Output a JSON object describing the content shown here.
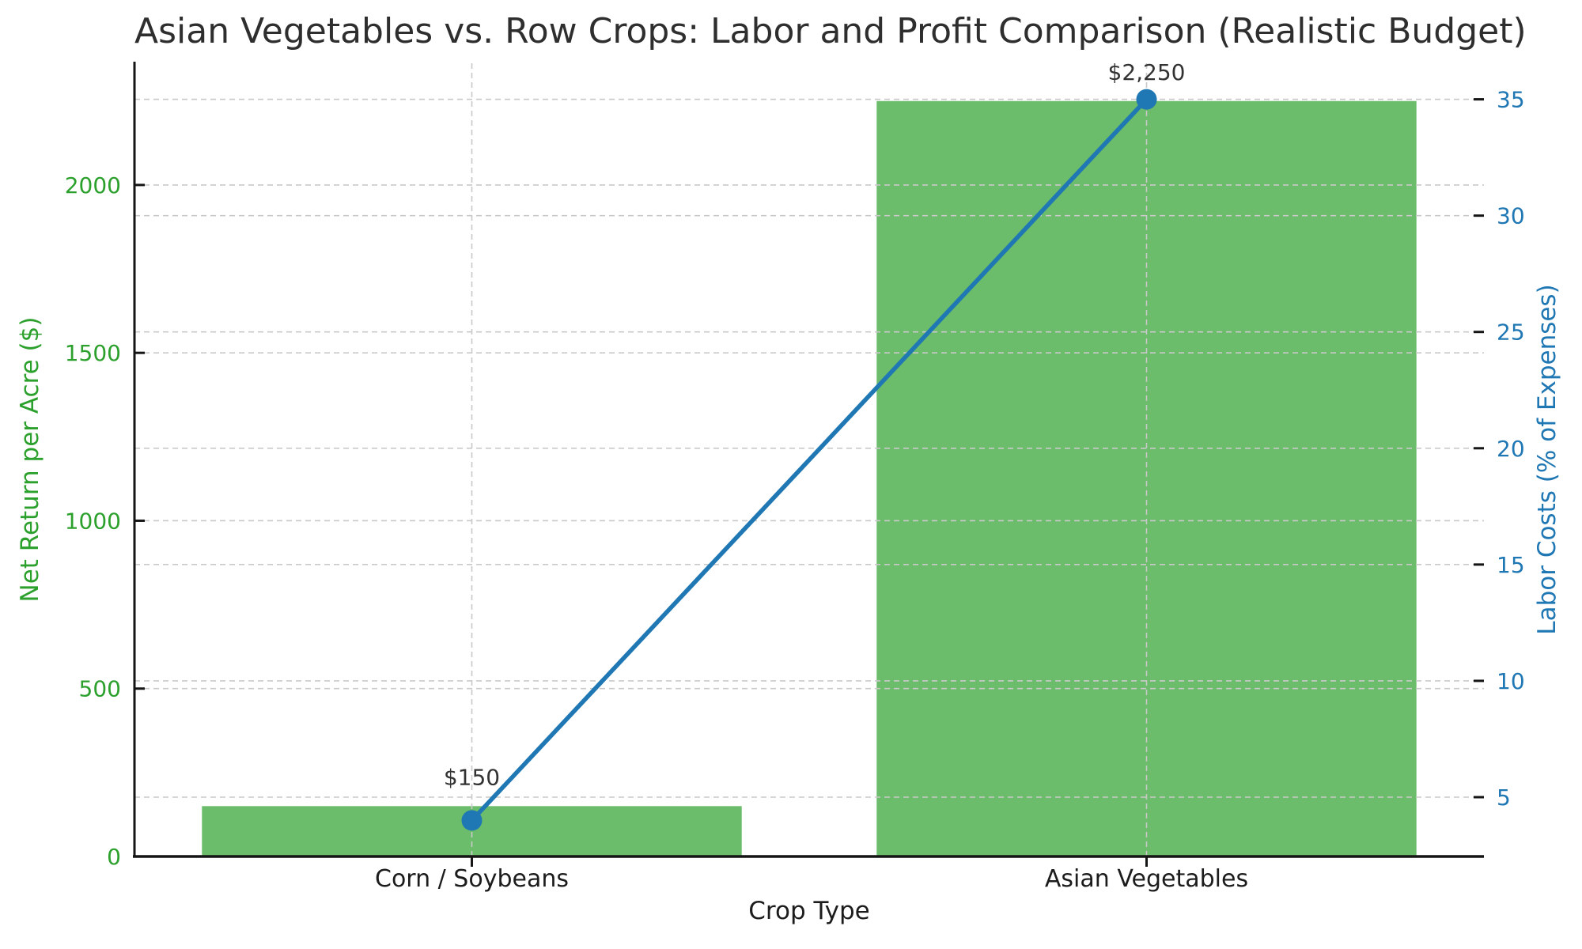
{
  "chart_data": {
    "type": "bar+line",
    "title": "Asian Vegetables vs. Row Crops: Labor and Profit Comparison (Realistic Budget)",
    "categories": [
      "Corn / Soybeans",
      "Asian Vegetables"
    ],
    "x_axis": {
      "label": "Crop Type"
    },
    "left_axis": {
      "label": "Net Return per Acre ($)",
      "color": "#2ca02c",
      "ticks": [
        0,
        500,
        1000,
        1500,
        2000
      ],
      "range": [
        0,
        2362.5
      ]
    },
    "right_axis": {
      "label": "Labor Costs (% of Expenses)",
      "color": "#1f77b4",
      "ticks": [
        5,
        10,
        15,
        20,
        25,
        30,
        35
      ],
      "range": [
        2.45,
        36.55
      ]
    },
    "series": [
      {
        "name": "Net Return per Acre ($)",
        "type": "bar",
        "axis": "left",
        "values": [
          150,
          2250
        ],
        "data_labels": [
          "$150",
          "$2,250"
        ],
        "color": "rgba(44,160,44,0.7)"
      },
      {
        "name": "Labor Costs (% of Expenses)",
        "type": "line",
        "axis": "right",
        "values": [
          4,
          35
        ],
        "color": "#1f77b4"
      }
    ],
    "grid": {
      "show": true,
      "style": "dashed",
      "color": "#c9c9c9"
    },
    "legend": "none",
    "annotation_color": "#333333"
  }
}
